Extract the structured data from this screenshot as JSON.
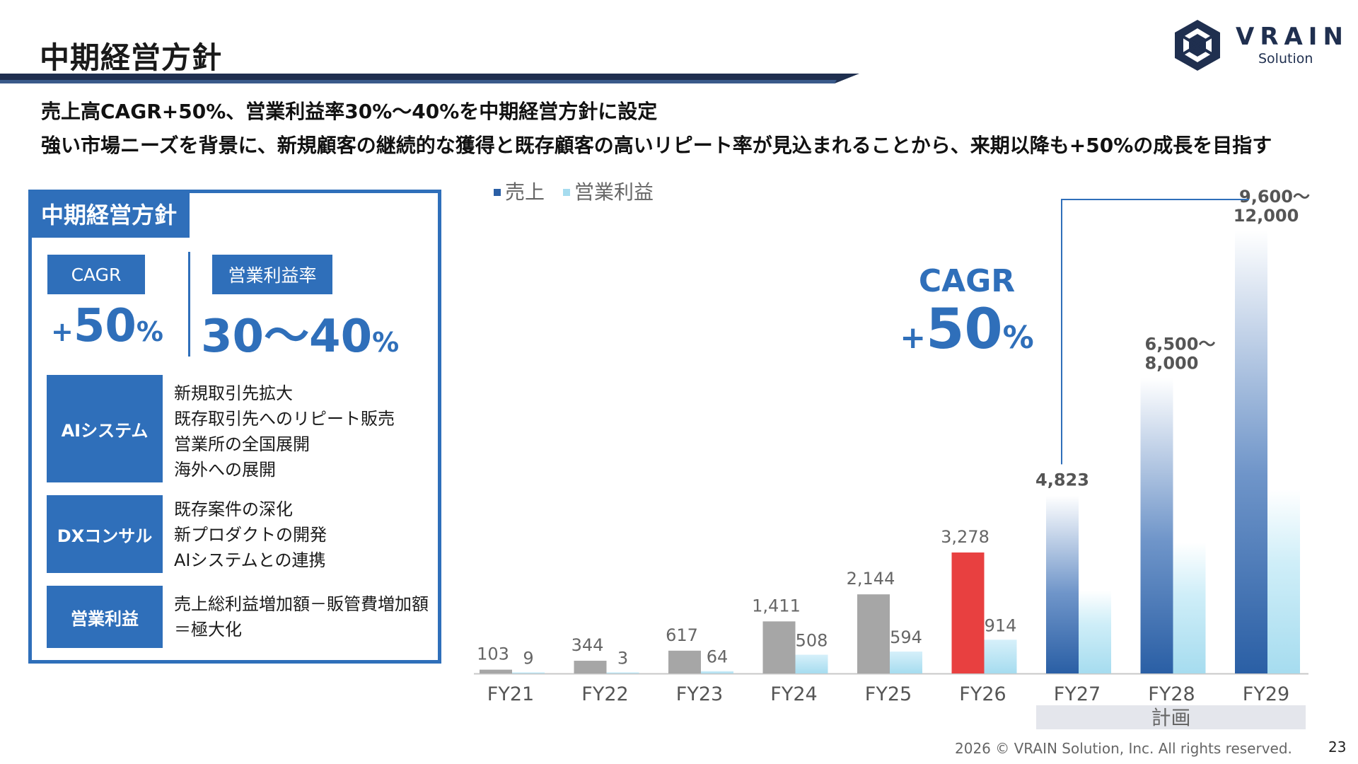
{
  "header": {
    "title": "中期経営方針",
    "logo_name": "VRAIN",
    "logo_sub": "Solution"
  },
  "summary": {
    "line1": "売上高CAGR+50%、営業利益率30%〜40%を中期経営方針に設定",
    "line2": "強い市場ニーズを背景に、新規顧客の継続的な獲得と既存顧客の高いリピート率が見込まれることから、来期以降も+50%の成長を目指す"
  },
  "policy_panel": {
    "title": "中期経営方針",
    "kpis": [
      {
        "label": "CAGR",
        "prefix": "+",
        "value": "50",
        "suffix": "%"
      },
      {
        "label": "営業利益率",
        "prefix": "",
        "value": "30〜40",
        "suffix": "%"
      }
    ],
    "strategies": [
      {
        "name": "AIシステム",
        "items": [
          "新規取引先拡大",
          "既存取引先へのリピート販売",
          "営業所の全国展開",
          "海外への展開"
        ]
      },
      {
        "name": "DXコンサル",
        "items": [
          "既存案件の深化",
          "新プロダクトの開発",
          "AIシステムとの連携"
        ]
      },
      {
        "name": "営業利益",
        "items": [
          "売上総利益増加額－販管費増加額",
          "＝極大化"
        ]
      }
    ]
  },
  "chart_data": {
    "type": "bar",
    "categories": [
      "FY21",
      "FY22",
      "FY23",
      "FY24",
      "FY25",
      "FY26",
      "FY27",
      "FY28",
      "FY29"
    ],
    "series": [
      {
        "name": "売上",
        "values": [
          103,
          344,
          617,
          1411,
          2144,
          3278,
          4823,
          8000,
          12000
        ],
        "labels": [
          "103",
          "344",
          "617",
          "1,411",
          "2,144",
          "3,278",
          "4,823",
          "6,500〜\n8,000",
          "9,600〜\n12,000"
        ]
      },
      {
        "name": "営業利益",
        "values": [
          9,
          3,
          64,
          508,
          594,
          914,
          2250,
          3550,
          5000
        ],
        "labels": [
          "9",
          "3",
          "64",
          "508",
          "594",
          "914",
          "",
          "",
          ""
        ]
      }
    ],
    "highlight_category": "FY26",
    "plan_categories": [
      "FY27",
      "FY28",
      "FY29"
    ],
    "plan_label": "計画",
    "annotation": {
      "line1": "CAGR",
      "prefix": "+",
      "value": "50",
      "suffix": "%"
    },
    "ylim": [
      0,
      12500
    ],
    "legend_position": "top-left",
    "colors": {
      "sales": "#a6a6a6",
      "profit": "#a6dcef",
      "highlight": "#e84040",
      "plan": "#2a5fa5",
      "accent": "#2f6fba"
    }
  },
  "footer": {
    "copyright": "2026 © VRAIN Solution, Inc. All rights reserved.",
    "page_number": "23"
  }
}
